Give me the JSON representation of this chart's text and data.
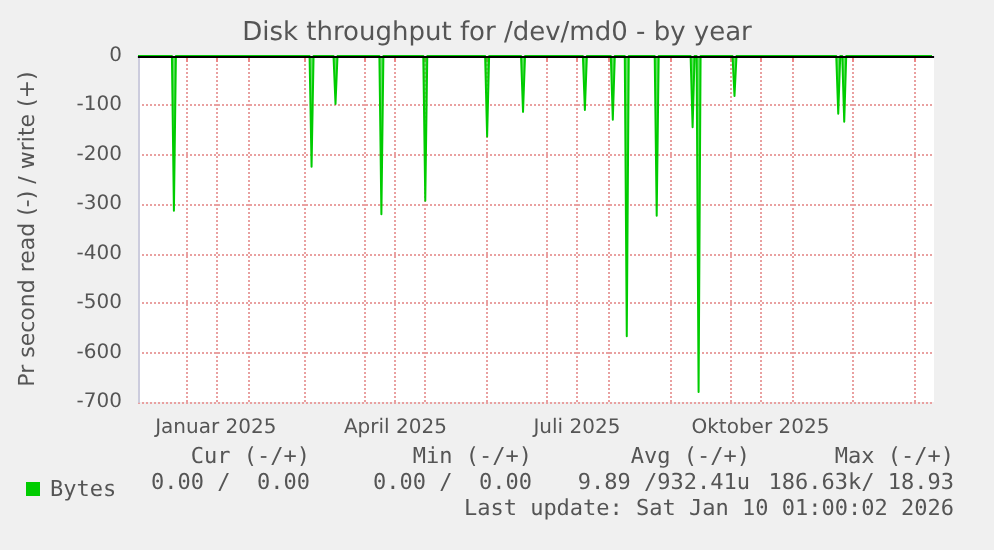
{
  "chart_data": {
    "type": "area",
    "title": "Disk throughput for /dev/md0 - by year",
    "ylabel": "Pr second read (-) / write (+)",
    "x": [
      "2024-12-08",
      "2024-12-25",
      "2024-12-26",
      "2024-12-27",
      "2025-03-04",
      "2025-03-05",
      "2025-03-06",
      "2025-03-16",
      "2025-03-17",
      "2025-03-18",
      "2025-04-08",
      "2025-04-09",
      "2025-04-10",
      "2025-04-30",
      "2025-05-01",
      "2025-05-02",
      "2025-05-31",
      "2025-06-01",
      "2025-06-02",
      "2025-06-18",
      "2025-06-19",
      "2025-06-20",
      "2025-07-19",
      "2025-07-20",
      "2025-07-21",
      "2025-08-02",
      "2025-08-03",
      "2025-08-04",
      "2025-08-09",
      "2025-08-10",
      "2025-08-11",
      "2025-08-24",
      "2025-08-25",
      "2025-08-26",
      "2025-09-11",
      "2025-09-12",
      "2025-09-13",
      "2025-09-14",
      "2025-09-15",
      "2025-09-16",
      "2025-10-02",
      "2025-10-03",
      "2025-10-04",
      "2025-11-23",
      "2025-11-24",
      "2025-11-25",
      "2025-11-26",
      "2025-11-27",
      "2025-11-28",
      "2026-01-10"
    ],
    "series": [
      {
        "name": "Bytes",
        "color": "#00cc00",
        "values": [
          0,
          0,
          -313,
          0,
          0,
          -224,
          0,
          0,
          -97,
          0,
          0,
          -320,
          0,
          0,
          -293,
          0,
          0,
          -163,
          0,
          0,
          -113,
          0,
          0,
          -109,
          0,
          0,
          -129,
          0,
          0,
          -567,
          0,
          0,
          -323,
          0,
          0,
          -144,
          0,
          0,
          -680,
          0,
          0,
          -81,
          0,
          0,
          -117,
          0,
          0,
          -133,
          0,
          0
        ]
      }
    ],
    "xlim": [
      "2024-12-08",
      "2026-01-11"
    ],
    "xticks": [
      {
        "value": "2025-01-01",
        "label": null
      },
      {
        "value": "2025-01-16",
        "label": "Januar 2025"
      },
      {
        "value": "2025-02-01",
        "label": null
      },
      {
        "value": "2025-03-01",
        "label": null
      },
      {
        "value": "2025-04-01",
        "label": null
      },
      {
        "value": "2025-04-16",
        "label": "April 2025"
      },
      {
        "value": "2025-05-01",
        "label": null
      },
      {
        "value": "2025-06-01",
        "label": null
      },
      {
        "value": "2025-07-01",
        "label": null
      },
      {
        "value": "2025-07-16",
        "label": "Juli 2025"
      },
      {
        "value": "2025-08-01",
        "label": null
      },
      {
        "value": "2025-09-01",
        "label": null
      },
      {
        "value": "2025-10-01",
        "label": null
      },
      {
        "value": "2025-10-16",
        "label": "Oktober 2025"
      },
      {
        "value": "2025-11-01",
        "label": null
      },
      {
        "value": "2025-12-01",
        "label": null
      },
      {
        "value": "2026-01-01",
        "label": null
      }
    ],
    "ylim": [
      -700,
      0
    ],
    "yticks": [
      -700,
      -600,
      -500,
      -400,
      -300,
      -200,
      -100,
      0
    ],
    "ref_lines": [
      {
        "axis": "y",
        "value": 0,
        "color": "#000000"
      }
    ],
    "grid": true,
    "legend": "bottom left",
    "annotations": [
      "Cur (-/+)",
      "Min (-/+)",
      "Avg (-/+)",
      "Max (-/+)",
      "0.00 /  0.00",
      "0.00 /  0.00",
      "9.89 /932.41u",
      "186.63k/ 18.93",
      "Last update: Sat Jan 10 01:00:02 2026"
    ]
  }
}
